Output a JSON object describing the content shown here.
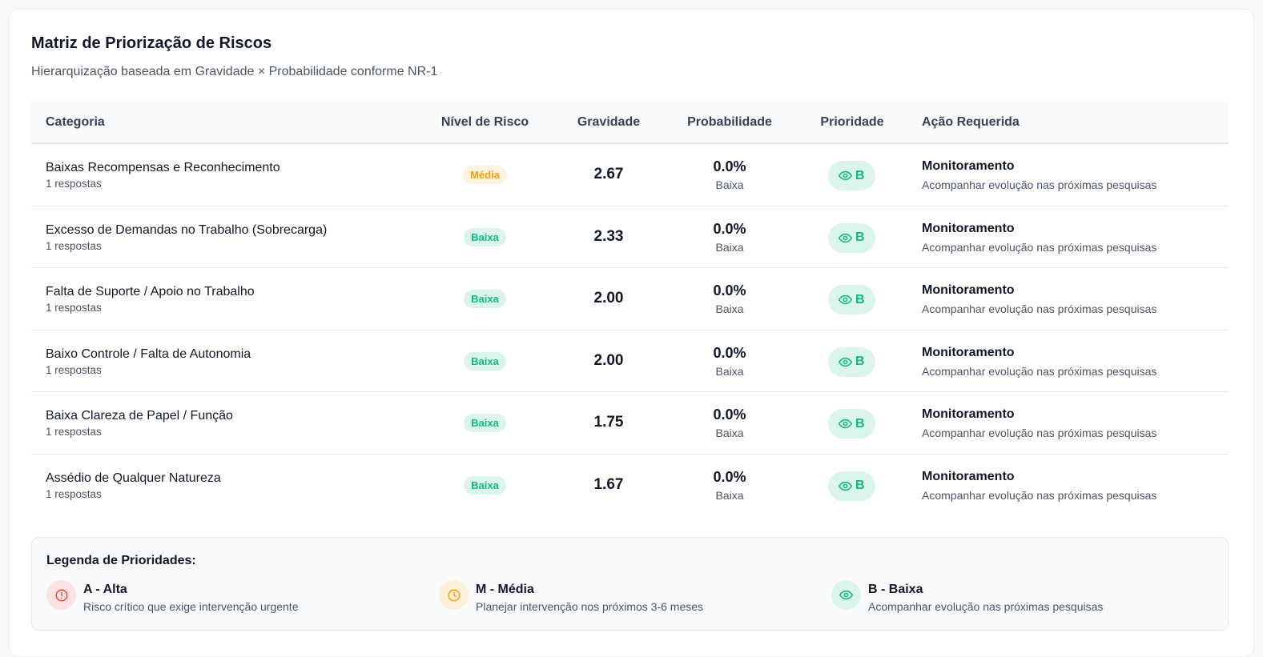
{
  "header": {
    "title": "Matriz de Priorização de Riscos",
    "subtitle": "Hierarquização baseada em Gravidade × Probabilidade conforme NR-1"
  },
  "table": {
    "columns": [
      "Categoria",
      "Nível de Risco",
      "Gravidade",
      "Probabilidade",
      "Prioridade",
      "Ação Requerida"
    ],
    "rows": [
      {
        "categoria": "Baixas Recompensas e Reconhecimento",
        "respostas": "1 respostas",
        "nivel": "Média",
        "nivel_level": "media",
        "gravidade": "2.67",
        "probabilidade": "0.0%",
        "prob_label": "Baixa",
        "prioridade": "B",
        "acao": "Monitoramento",
        "acao_desc": "Acompanhar evolução nas próximas pesquisas"
      },
      {
        "categoria": "Excesso de Demandas no Trabalho (Sobrecarga)",
        "respostas": "1 respostas",
        "nivel": "Baixa",
        "nivel_level": "baixa",
        "gravidade": "2.33",
        "probabilidade": "0.0%",
        "prob_label": "Baixa",
        "prioridade": "B",
        "acao": "Monitoramento",
        "acao_desc": "Acompanhar evolução nas próximas pesquisas"
      },
      {
        "categoria": "Falta de Suporte / Apoio no Trabalho",
        "respostas": "1 respostas",
        "nivel": "Baixa",
        "nivel_level": "baixa",
        "gravidade": "2.00",
        "probabilidade": "0.0%",
        "prob_label": "Baixa",
        "prioridade": "B",
        "acao": "Monitoramento",
        "acao_desc": "Acompanhar evolução nas próximas pesquisas"
      },
      {
        "categoria": "Baixo Controle / Falta de Autonomia",
        "respostas": "1 respostas",
        "nivel": "Baixa",
        "nivel_level": "baixa",
        "gravidade": "2.00",
        "probabilidade": "0.0%",
        "prob_label": "Baixa",
        "prioridade": "B",
        "acao": "Monitoramento",
        "acao_desc": "Acompanhar evolução nas próximas pesquisas"
      },
      {
        "categoria": "Baixa Clareza de Papel / Função",
        "respostas": "1 respostas",
        "nivel": "Baixa",
        "nivel_level": "baixa",
        "gravidade": "1.75",
        "probabilidade": "0.0%",
        "prob_label": "Baixa",
        "prioridade": "B",
        "acao": "Monitoramento",
        "acao_desc": "Acompanhar evolução nas próximas pesquisas"
      },
      {
        "categoria": "Assédio de Qualquer Natureza",
        "respostas": "1 respostas",
        "nivel": "Baixa",
        "nivel_level": "baixa",
        "gravidade": "1.67",
        "probabilidade": "0.0%",
        "prob_label": "Baixa",
        "prioridade": "B",
        "acao": "Monitoramento",
        "acao_desc": "Acompanhar evolução nas próximas pesquisas"
      }
    ]
  },
  "legend": {
    "title": "Legenda de Prioridades:",
    "items": [
      {
        "name": "A - Alta",
        "desc": "Risco crítico que exige intervenção urgente",
        "icon": "alert-circle-icon",
        "color": "#ef4444",
        "bg": "#fde2e2"
      },
      {
        "name": "M - Média",
        "desc": "Planejar intervenção nos próximos 3-6 meses",
        "icon": "clock-icon",
        "color": "#f59e0b",
        "bg": "#fdf0d9"
      },
      {
        "name": "B - Baixa",
        "desc": "Acompanhar evolução nas próximas pesquisas",
        "icon": "eye-icon",
        "color": "#10b981",
        "bg": "#dcf5ea"
      }
    ]
  },
  "colors": {
    "media_badge_bg": "#fdf3dc",
    "media_badge_text": "#f59e0b",
    "baixa_badge_bg": "#dcf5ea",
    "baixa_badge_text": "#10b981"
  }
}
